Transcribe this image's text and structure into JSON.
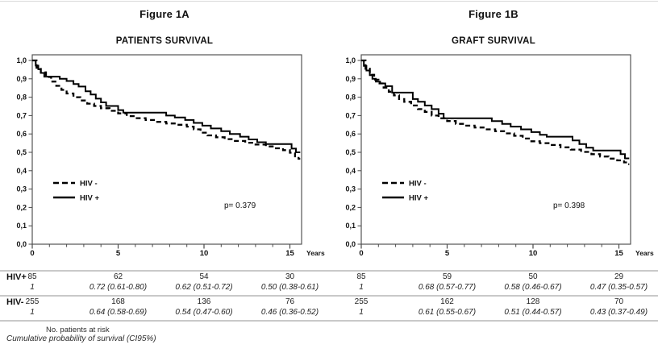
{
  "page": {
    "background": "#ffffff",
    "description": "Kaplan-Meier survival figure with two panels and number-at-risk table"
  },
  "colors": {
    "curve": "#000000",
    "table_rule": "#c9c9c9",
    "axis": "#4a4a4a",
    "text": "#111111"
  },
  "chart_data": [
    {
      "figure_label": "Figure 1A",
      "title": "PATIENTS SURVIVAL",
      "type": "line",
      "step": true,
      "xlabel": "Years",
      "x_tick_labels": [
        "0",
        "5",
        "10",
        "15"
      ],
      "x_ticks": [
        0,
        5,
        10,
        15
      ],
      "x_minor_tick_interval": 1,
      "xlim": [
        0,
        15.6
      ],
      "ylim": [
        0,
        1
      ],
      "y_tick_labels": [
        "0,0",
        "0,1",
        "0,2",
        "0,3",
        "0,4",
        "0,5",
        "0,6",
        "0,7",
        "0,8",
        "0,9",
        "1,0"
      ],
      "grid": false,
      "legend_position": "inside-left",
      "p_value": "p= 0.379",
      "legend": [
        {
          "label": "HIV -",
          "line_style": "dashed"
        },
        {
          "label": "HIV +",
          "line_style": "solid"
        }
      ],
      "series": [
        {
          "name": "HIV -",
          "line_style": "dashed",
          "points": [
            [
              0,
              1.0
            ],
            [
              0.25,
              0.96
            ],
            [
              0.5,
              0.935
            ],
            [
              0.8,
              0.91
            ],
            [
              1.1,
              0.885
            ],
            [
              1.4,
              0.862
            ],
            [
              1.7,
              0.84
            ],
            [
              2.0,
              0.82
            ],
            [
              2.4,
              0.8
            ],
            [
              2.8,
              0.782
            ],
            [
              3.2,
              0.765
            ],
            [
              3.6,
              0.752
            ],
            [
              4.0,
              0.74
            ],
            [
              4.5,
              0.726
            ],
            [
              5.0,
              0.712
            ],
            [
              5.5,
              0.697
            ],
            [
              6.0,
              0.686
            ],
            [
              6.6,
              0.676
            ],
            [
              7.2,
              0.666
            ],
            [
              7.8,
              0.657
            ],
            [
              8.4,
              0.65
            ],
            [
              9.0,
              0.64
            ],
            [
              9.4,
              0.625
            ],
            [
              9.8,
              0.607
            ],
            [
              10.2,
              0.592
            ],
            [
              10.7,
              0.582
            ],
            [
              11.2,
              0.572
            ],
            [
              11.8,
              0.562
            ],
            [
              12.4,
              0.552
            ],
            [
              13.0,
              0.542
            ],
            [
              13.6,
              0.532
            ],
            [
              14.1,
              0.522
            ],
            [
              14.6,
              0.512
            ],
            [
              15.0,
              0.498
            ],
            [
              15.3,
              0.478
            ],
            [
              15.5,
              0.465
            ]
          ]
        },
        {
          "name": "HIV +",
          "line_style": "solid",
          "points": [
            [
              0,
              1.0
            ],
            [
              0.2,
              0.972
            ],
            [
              0.35,
              0.952
            ],
            [
              0.5,
              0.932
            ],
            [
              0.7,
              0.912
            ],
            [
              1.6,
              0.9
            ],
            [
              2.0,
              0.888
            ],
            [
              2.4,
              0.872
            ],
            [
              2.7,
              0.858
            ],
            [
              3.1,
              0.832
            ],
            [
              3.4,
              0.815
            ],
            [
              3.7,
              0.792
            ],
            [
              4.0,
              0.772
            ],
            [
              4.3,
              0.752
            ],
            [
              5.0,
              0.73
            ],
            [
              5.3,
              0.716
            ],
            [
              7.8,
              0.7
            ],
            [
              8.3,
              0.69
            ],
            [
              8.9,
              0.676
            ],
            [
              9.4,
              0.66
            ],
            [
              9.9,
              0.645
            ],
            [
              10.4,
              0.63
            ],
            [
              11.0,
              0.615
            ],
            [
              11.5,
              0.6
            ],
            [
              12.1,
              0.585
            ],
            [
              12.6,
              0.57
            ],
            [
              13.1,
              0.555
            ],
            [
              13.6,
              0.545
            ],
            [
              15.1,
              0.52
            ],
            [
              15.35,
              0.5
            ]
          ]
        }
      ]
    },
    {
      "figure_label": "Figure 1B",
      "title": "GRAFT SURVIVAL",
      "type": "line",
      "step": true,
      "xlabel": "Years",
      "x_tick_labels": [
        "0",
        "5",
        "10",
        "15"
      ],
      "x_ticks": [
        0,
        5,
        10,
        15
      ],
      "x_minor_tick_interval": 1,
      "xlim": [
        0,
        15.6
      ],
      "ylim": [
        0,
        1
      ],
      "y_tick_labels": [
        "0,0",
        "0,1",
        "0,2",
        "0,3",
        "0,4",
        "0,5",
        "0,6",
        "0,7",
        "0,8",
        "0,9",
        "1,0"
      ],
      "grid": false,
      "legend_position": "inside-left",
      "p_value": "p= 0.398",
      "legend": [
        {
          "label": "HIV -",
          "line_style": "dashed"
        },
        {
          "label": "HIV +",
          "line_style": "solid"
        }
      ],
      "series": [
        {
          "name": "HIV -",
          "line_style": "dashed",
          "points": [
            [
              0,
              1.0
            ],
            [
              0.25,
              0.955
            ],
            [
              0.5,
              0.922
            ],
            [
              0.75,
              0.895
            ],
            [
              1.0,
              0.875
            ],
            [
              1.3,
              0.852
            ],
            [
              1.6,
              0.83
            ],
            [
              1.9,
              0.81
            ],
            [
              2.2,
              0.79
            ],
            [
              2.5,
              0.775
            ],
            [
              2.9,
              0.755
            ],
            [
              3.3,
              0.735
            ],
            [
              3.7,
              0.72
            ],
            [
              4.1,
              0.7
            ],
            [
              4.5,
              0.685
            ],
            [
              5.0,
              0.67
            ],
            [
              5.5,
              0.655
            ],
            [
              6.0,
              0.645
            ],
            [
              6.6,
              0.635
            ],
            [
              7.2,
              0.625
            ],
            [
              7.8,
              0.615
            ],
            [
              8.4,
              0.603
            ],
            [
              8.9,
              0.59
            ],
            [
              9.4,
              0.575
            ],
            [
              9.9,
              0.56
            ],
            [
              10.4,
              0.55
            ],
            [
              11.0,
              0.54
            ],
            [
              11.6,
              0.527
            ],
            [
              12.2,
              0.515
            ],
            [
              12.8,
              0.502
            ],
            [
              13.4,
              0.49
            ],
            [
              13.9,
              0.477
            ],
            [
              14.4,
              0.466
            ],
            [
              14.9,
              0.456
            ],
            [
              15.3,
              0.445
            ],
            [
              15.5,
              0.435
            ]
          ]
        },
        {
          "name": "HIV +",
          "line_style": "solid",
          "points": [
            [
              0,
              1.0
            ],
            [
              0.15,
              0.97
            ],
            [
              0.3,
              0.945
            ],
            [
              0.5,
              0.92
            ],
            [
              0.65,
              0.9
            ],
            [
              0.85,
              0.885
            ],
            [
              1.1,
              0.875
            ],
            [
              1.4,
              0.86
            ],
            [
              1.8,
              0.825
            ],
            [
              3.0,
              0.79
            ],
            [
              3.3,
              0.775
            ],
            [
              3.7,
              0.755
            ],
            [
              4.1,
              0.735
            ],
            [
              4.5,
              0.71
            ],
            [
              4.8,
              0.685
            ],
            [
              7.6,
              0.67
            ],
            [
              8.2,
              0.655
            ],
            [
              8.7,
              0.64
            ],
            [
              9.3,
              0.625
            ],
            [
              9.9,
              0.61
            ],
            [
              10.4,
              0.595
            ],
            [
              10.8,
              0.585
            ],
            [
              12.3,
              0.565
            ],
            [
              12.7,
              0.545
            ],
            [
              13.1,
              0.525
            ],
            [
              13.5,
              0.51
            ],
            [
              15.1,
              0.49
            ],
            [
              15.35,
              0.467
            ]
          ]
        }
      ]
    }
  ],
  "risk_table": {
    "rows": [
      {
        "label": "HIV+",
        "counts": [
          "85",
          "62",
          "54",
          "30",
          "85",
          "59",
          "50",
          "29"
        ],
        "probabilities": [
          "1",
          "0.72 (0.61-0.80)",
          "0.62 (0.51-0.72)",
          "0.50 (0.38-0.61)",
          "1",
          "0.68 (0.57-0.77)",
          "0.58 (0.46-0.67)",
          "0.47 (0.35-0.57)"
        ]
      },
      {
        "label": "HIV-",
        "counts": [
          "255",
          "168",
          "136",
          "76",
          "255",
          "162",
          "128",
          "70"
        ],
        "probabilities": [
          "1",
          "0.64 (0.58-0.69)",
          "0.54 (0.47-0.60)",
          "0.46 (0.36-0.52)",
          "1",
          "0.61 (0.55-0.67)",
          "0.51 (0.44-0.57)",
          "0.43 (0.37-0.49)"
        ]
      }
    ]
  },
  "footnotes": {
    "line1": "No. patients at risk",
    "line2": "Cumulative probability of survival (CI95%)"
  }
}
